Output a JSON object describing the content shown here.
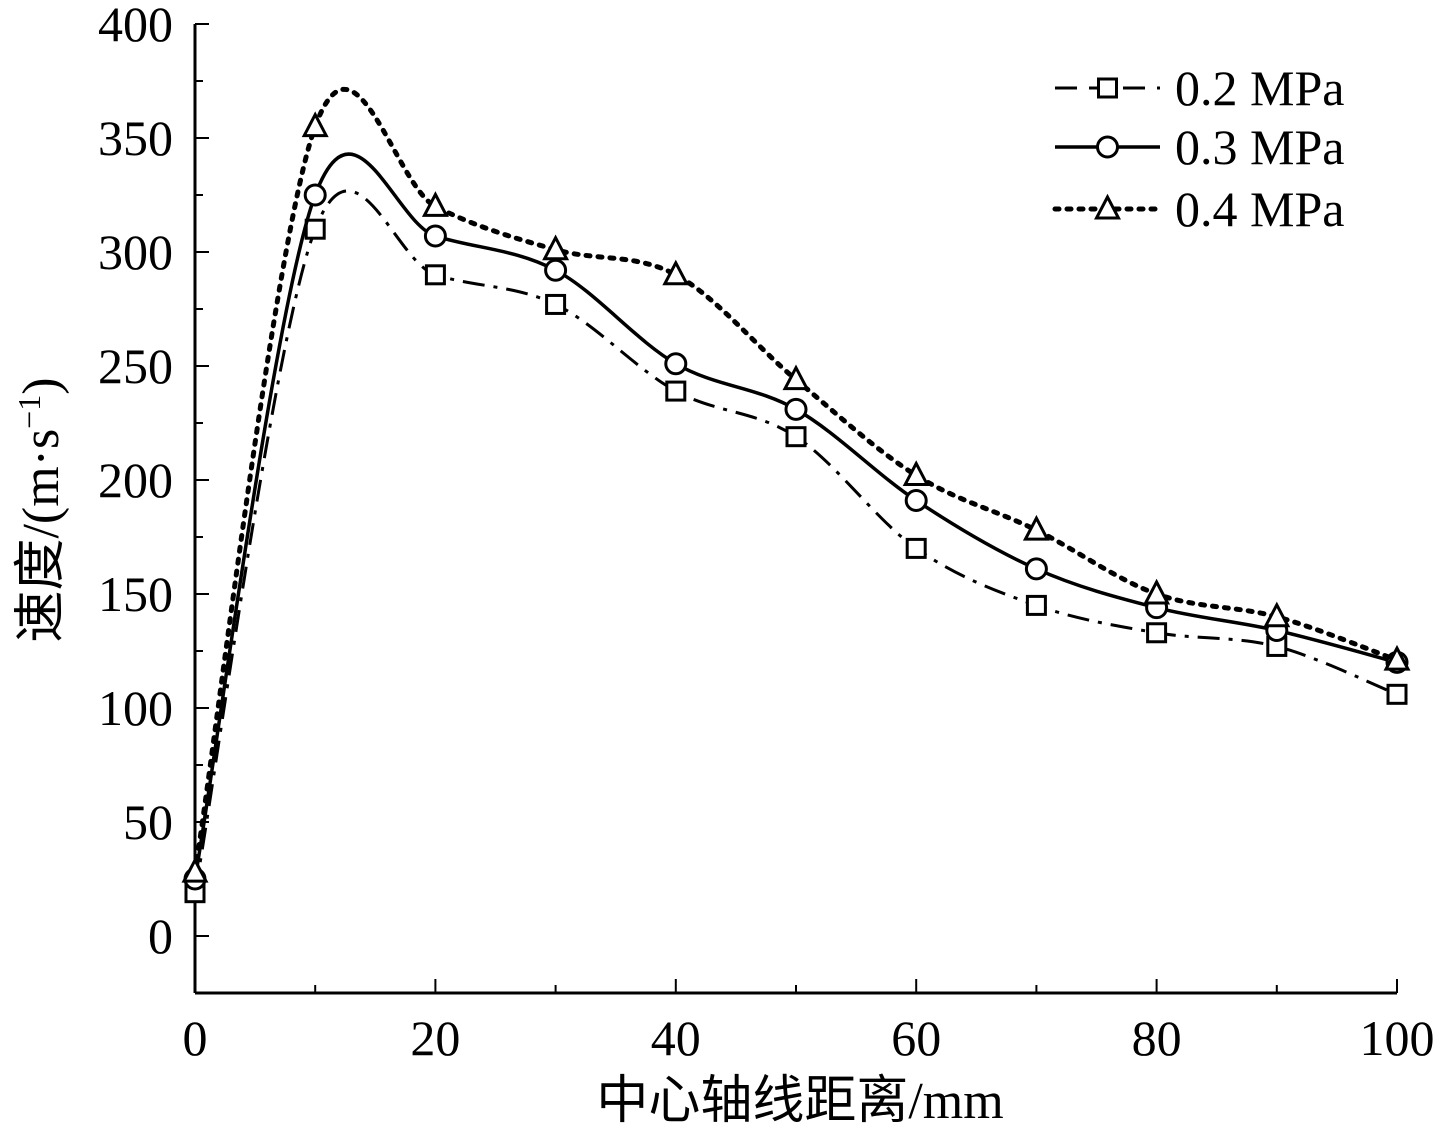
{
  "chart_data": {
    "type": "line",
    "title": "",
    "xlabel": "中心轴线距离/mm",
    "ylabel_main": "速度/(m·s",
    "ylabel_sup": "−1",
    "ylabel_close": ")",
    "xlim": [
      0,
      100
    ],
    "ylim": [
      -25,
      400
    ],
    "xticks": [
      0,
      20,
      40,
      60,
      80,
      100
    ],
    "yticks": [
      0,
      50,
      100,
      150,
      200,
      250,
      300,
      350,
      400
    ],
    "grid": false,
    "legend_position": "top-right",
    "x": [
      0,
      10,
      20,
      30,
      40,
      50,
      60,
      70,
      80,
      90,
      100
    ],
    "series": [
      {
        "name": "0.2 MPa",
        "marker": "square",
        "line_style": "dash-dot",
        "values": [
          19,
          310,
          290,
          277,
          239,
          219,
          170,
          145,
          133,
          127,
          106
        ]
      },
      {
        "name": "0.3 MPa",
        "marker": "circle",
        "line_style": "solid",
        "values": [
          25,
          325,
          307,
          292,
          251,
          231,
          191,
          161,
          144,
          134,
          120
        ]
      },
      {
        "name": "0.4 MPa",
        "marker": "triangle",
        "line_style": "dotted",
        "values": [
          28,
          355,
          320,
          301,
          290,
          244,
          202,
          178,
          150,
          140,
          121
        ]
      }
    ],
    "colors": {
      "line": "#000000",
      "background": "#ffffff"
    }
  }
}
